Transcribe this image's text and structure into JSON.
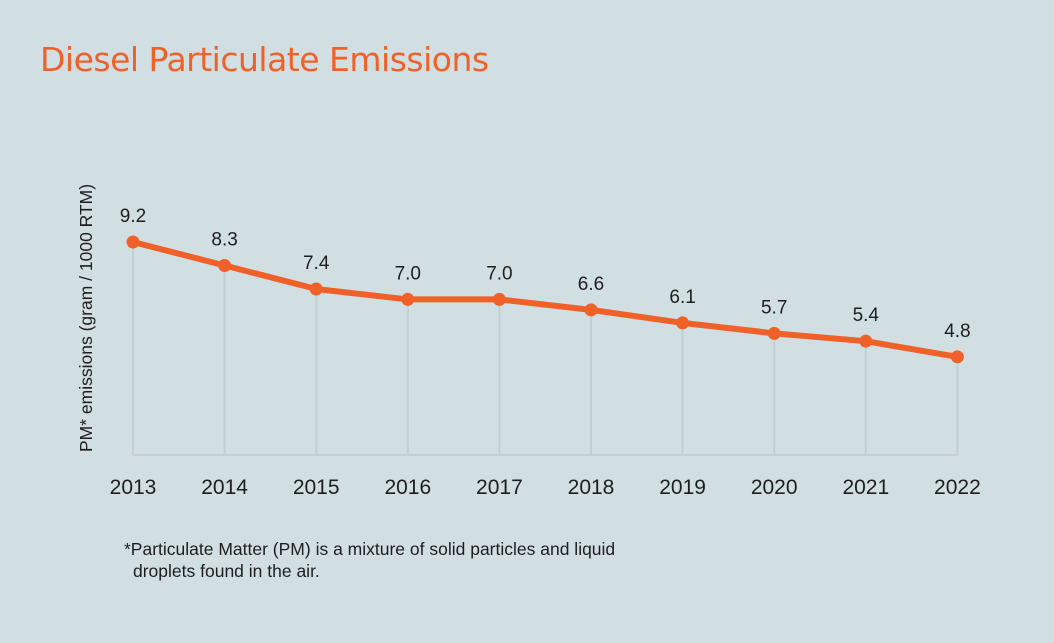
{
  "chart_data": {
    "type": "line",
    "title": "Diesel Particulate Emissions",
    "xlabel": "",
    "ylabel": "PM* emissions (gram / 1000 RTM)",
    "categories": [
      "2013",
      "2014",
      "2015",
      "2016",
      "2017",
      "2018",
      "2019",
      "2020",
      "2021",
      "2022"
    ],
    "values": [
      9.2,
      8.3,
      7.4,
      7.0,
      7.0,
      6.6,
      6.1,
      5.7,
      5.4,
      4.8
    ],
    "data_labels": [
      "9.2",
      "8.3",
      "7.4",
      "7.0",
      "7.0",
      "6.6",
      "6.1",
      "5.7",
      "5.4",
      "4.8"
    ],
    "grid": "vertical drop lines",
    "legend": "none",
    "line_color": "#f0612a",
    "footnote": [
      "*Particulate Matter (PM) is a mixture of solid particles and liquid",
      "droplets found in the air."
    ]
  }
}
